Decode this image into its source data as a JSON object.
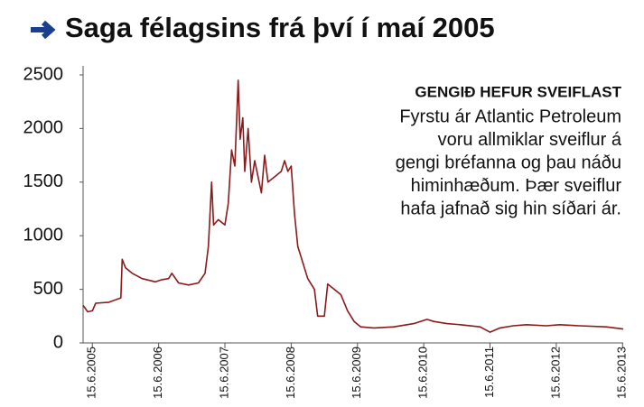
{
  "chart_data": {
    "type": "line",
    "title": "Saga félagsins frá því í maí 2005",
    "annotation_title": "GENGIÐ HEFUR SVEIFLAST",
    "annotation_lines": [
      "Fyrstu ár Atlantic Petroleum",
      "voru allmiklar sveiflur á",
      "gengi bréfanna og þau náðu",
      "himinhæðum. Þær sveiflur",
      "hafa jafnað sig hin síðari ár."
    ],
    "color": "#8b1a1a",
    "x": [
      2005.31,
      2005.38,
      2005.45,
      2005.5,
      2005.7,
      2005.88,
      2005.9,
      2005.95,
      2006.05,
      2006.2,
      2006.4,
      2006.5,
      2006.6,
      2006.65,
      2006.75,
      2006.9,
      2007.05,
      2007.15,
      2007.2,
      2007.25,
      2007.28,
      2007.35,
      2007.45,
      2007.5,
      2007.55,
      2007.6,
      2007.65,
      2007.68,
      2007.72,
      2007.75,
      2007.8,
      2007.85,
      2007.9,
      2007.95,
      2008.0,
      2008.05,
      2008.1,
      2008.2,
      2008.3,
      2008.35,
      2008.4,
      2008.45,
      2008.5,
      2008.55,
      2008.6,
      2008.7,
      2008.8,
      2008.85,
      2008.95,
      2009.0,
      2009.1,
      2009.2,
      2009.3,
      2009.4,
      2009.5,
      2009.7,
      2010.0,
      2010.3,
      2010.5,
      2010.6,
      2010.8,
      2011.0,
      2011.3,
      2011.45,
      2011.6,
      2011.8,
      2012.0,
      2012.3,
      2012.5,
      2012.8,
      2013.2,
      2013.46
    ],
    "values": [
      350,
      290,
      300,
      370,
      380,
      420,
      780,
      700,
      650,
      600,
      570,
      590,
      600,
      650,
      560,
      540,
      560,
      650,
      900,
      1500,
      1100,
      1150,
      1100,
      1300,
      1800,
      1650,
      2450,
      1900,
      2100,
      1600,
      2000,
      1500,
      1700,
      1550,
      1400,
      1750,
      1500,
      1550,
      1600,
      1700,
      1600,
      1650,
      1200,
      900,
      800,
      600,
      500,
      250,
      250,
      550,
      500,
      450,
      300,
      200,
      150,
      140,
      150,
      180,
      220,
      200,
      180,
      170,
      150,
      100,
      140,
      160,
      170,
      160,
      170,
      160,
      150,
      130
    ],
    "xlim": [
      2005.31,
      2013.46
    ],
    "xticks": [
      {
        "value": 2005.45,
        "label": "15.6.2005"
      },
      {
        "value": 2006.45,
        "label": "15.6.2006"
      },
      {
        "value": 2007.45,
        "label": "15.6.2007"
      },
      {
        "value": 2008.45,
        "label": "15.6.2008"
      },
      {
        "value": 2009.45,
        "label": "15.6.2009"
      },
      {
        "value": 2010.45,
        "label": "15.6.2010"
      },
      {
        "value": 2011.45,
        "label": "15.6.2011"
      },
      {
        "value": 2012.45,
        "label": "15.6.2012"
      },
      {
        "value": 2013.45,
        "label": "15.6.2013"
      }
    ],
    "ylim": [
      0,
      2500
    ],
    "yticks": [
      0,
      500,
      1000,
      1500,
      2000,
      2500
    ]
  }
}
